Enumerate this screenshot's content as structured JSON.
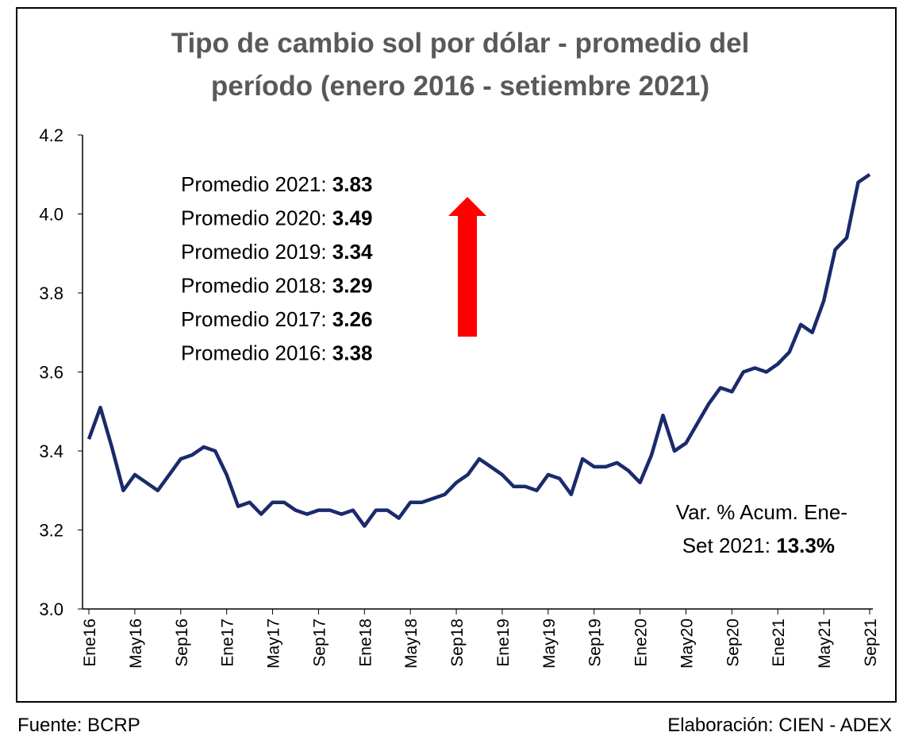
{
  "chart_data": {
    "type": "line",
    "title": [
      "Tipo de cambio sol por dólar - promedio del",
      "período (enero 2016 - setiembre 2021)"
    ],
    "categories": [
      "Ene16",
      null,
      null,
      null,
      "May16",
      null,
      null,
      null,
      "Sep16",
      null,
      null,
      null,
      "Ene17",
      null,
      null,
      null,
      "May17",
      null,
      null,
      null,
      "Sep17",
      null,
      null,
      null,
      "Ene18",
      null,
      null,
      null,
      "May18",
      null,
      null,
      null,
      "Sep18",
      null,
      null,
      null,
      "Ene19",
      null,
      null,
      null,
      "May19",
      null,
      null,
      null,
      "Sep19",
      null,
      null,
      null,
      "Ene20",
      null,
      null,
      null,
      "May20",
      null,
      null,
      null,
      "Sep20",
      null,
      null,
      null,
      "Ene21",
      null,
      null,
      null,
      "May21",
      null,
      null,
      null,
      "Sep21"
    ],
    "values": [
      3.43,
      3.51,
      3.41,
      3.3,
      3.34,
      3.32,
      3.3,
      3.34,
      3.38,
      3.39,
      3.41,
      3.4,
      3.34,
      3.26,
      3.27,
      3.24,
      3.27,
      3.27,
      3.25,
      3.24,
      3.25,
      3.25,
      3.24,
      3.25,
      3.21,
      3.25,
      3.25,
      3.23,
      3.27,
      3.27,
      3.28,
      3.29,
      3.32,
      3.34,
      3.38,
      3.36,
      3.34,
      3.31,
      3.31,
      3.3,
      3.34,
      3.33,
      3.29,
      3.38,
      3.36,
      3.36,
      3.37,
      3.35,
      3.32,
      3.39,
      3.49,
      3.4,
      3.42,
      3.47,
      3.52,
      3.56,
      3.55,
      3.6,
      3.61,
      3.6,
      3.62,
      3.65,
      3.72,
      3.7,
      3.78,
      3.91,
      3.94,
      4.08,
      4.1
    ],
    "color": "#1b2a6b",
    "ylim": [
      3.0,
      4.2
    ],
    "yticks": [
      {
        "value": 3.0,
        "label": "3.0"
      },
      3.2,
      3.4,
      3.6,
      3.8,
      {
        "value": 4.0,
        "label": "4.0"
      },
      4.2
    ],
    "annotations": [
      {
        "label": "Promedio 2021:",
        "value": 3.83
      },
      {
        "label": "Promedio 2020:",
        "value": 3.49
      },
      {
        "label": "Promedio 2019:",
        "value": 3.34
      },
      {
        "label": "Promedio 2018:",
        "value": 3.29
      },
      {
        "label": "Promedio 2017:",
        "value": 3.26
      },
      {
        "label": "Promedio 2016:",
        "value": 3.38
      }
    ],
    "variation": {
      "line1": "Var. % Acum. Ene-",
      "line2": "Set 2021:",
      "value": "13.3%"
    }
  },
  "footer": {
    "source": "Fuente: BCRP",
    "credit": "Elaboración: CIEN - ADEX"
  }
}
